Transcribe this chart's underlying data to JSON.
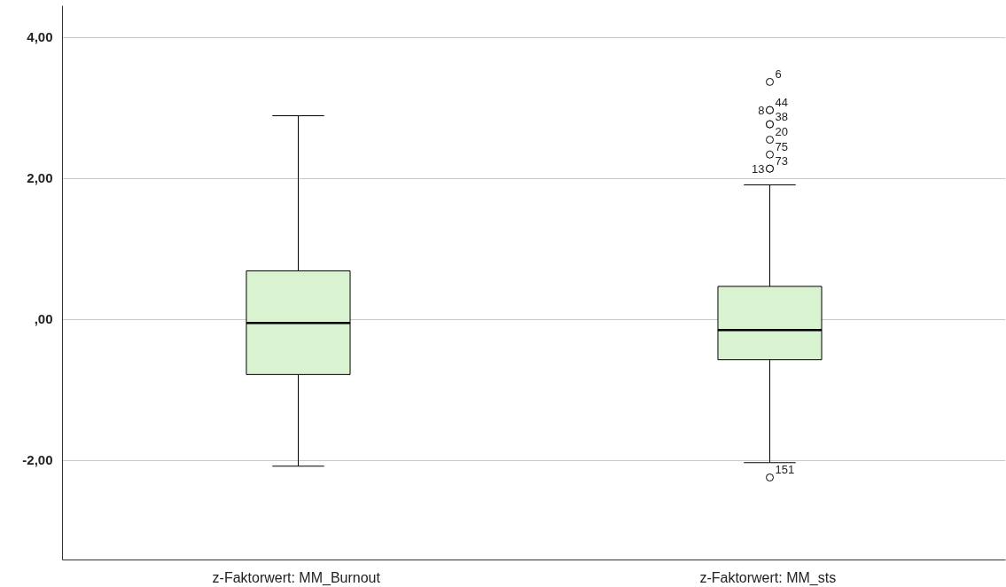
{
  "chart_data": {
    "type": "box",
    "categories": [
      "z-Faktorwert:  MM_Burnout",
      "z-Faktorwert:  MM_sts"
    ],
    "series": [
      {
        "color": "#d9f2d0",
        "boxes": [
          {
            "low": -2.08,
            "q1": -0.78,
            "median": -0.05,
            "q3": 0.69,
            "high": 2.89
          },
          {
            "low": -2.03,
            "q1": -0.57,
            "median": -0.15,
            "q3": 0.47,
            "high": 1.91,
            "outliers": [
              3.37,
              2.97,
              2.97,
              2.77,
              2.55,
              2.34,
              2.14,
              2.14,
              -2.24,
              2.77
            ]
          }
        ]
      }
    ],
    "ylim": [
      -3.41,
      4.45
    ],
    "yticks": [
      {
        "value": -2,
        "label": "-2,00"
      },
      {
        "value": 0,
        "label": ",00"
      },
      {
        "value": 2,
        "label": "2,00"
      },
      {
        "value": 4,
        "label": "4,00"
      }
    ],
    "grid": "y",
    "annotations": [
      "6",
      "44",
      "8",
      "38",
      "20",
      "75",
      "73",
      "13",
      "151"
    ]
  }
}
